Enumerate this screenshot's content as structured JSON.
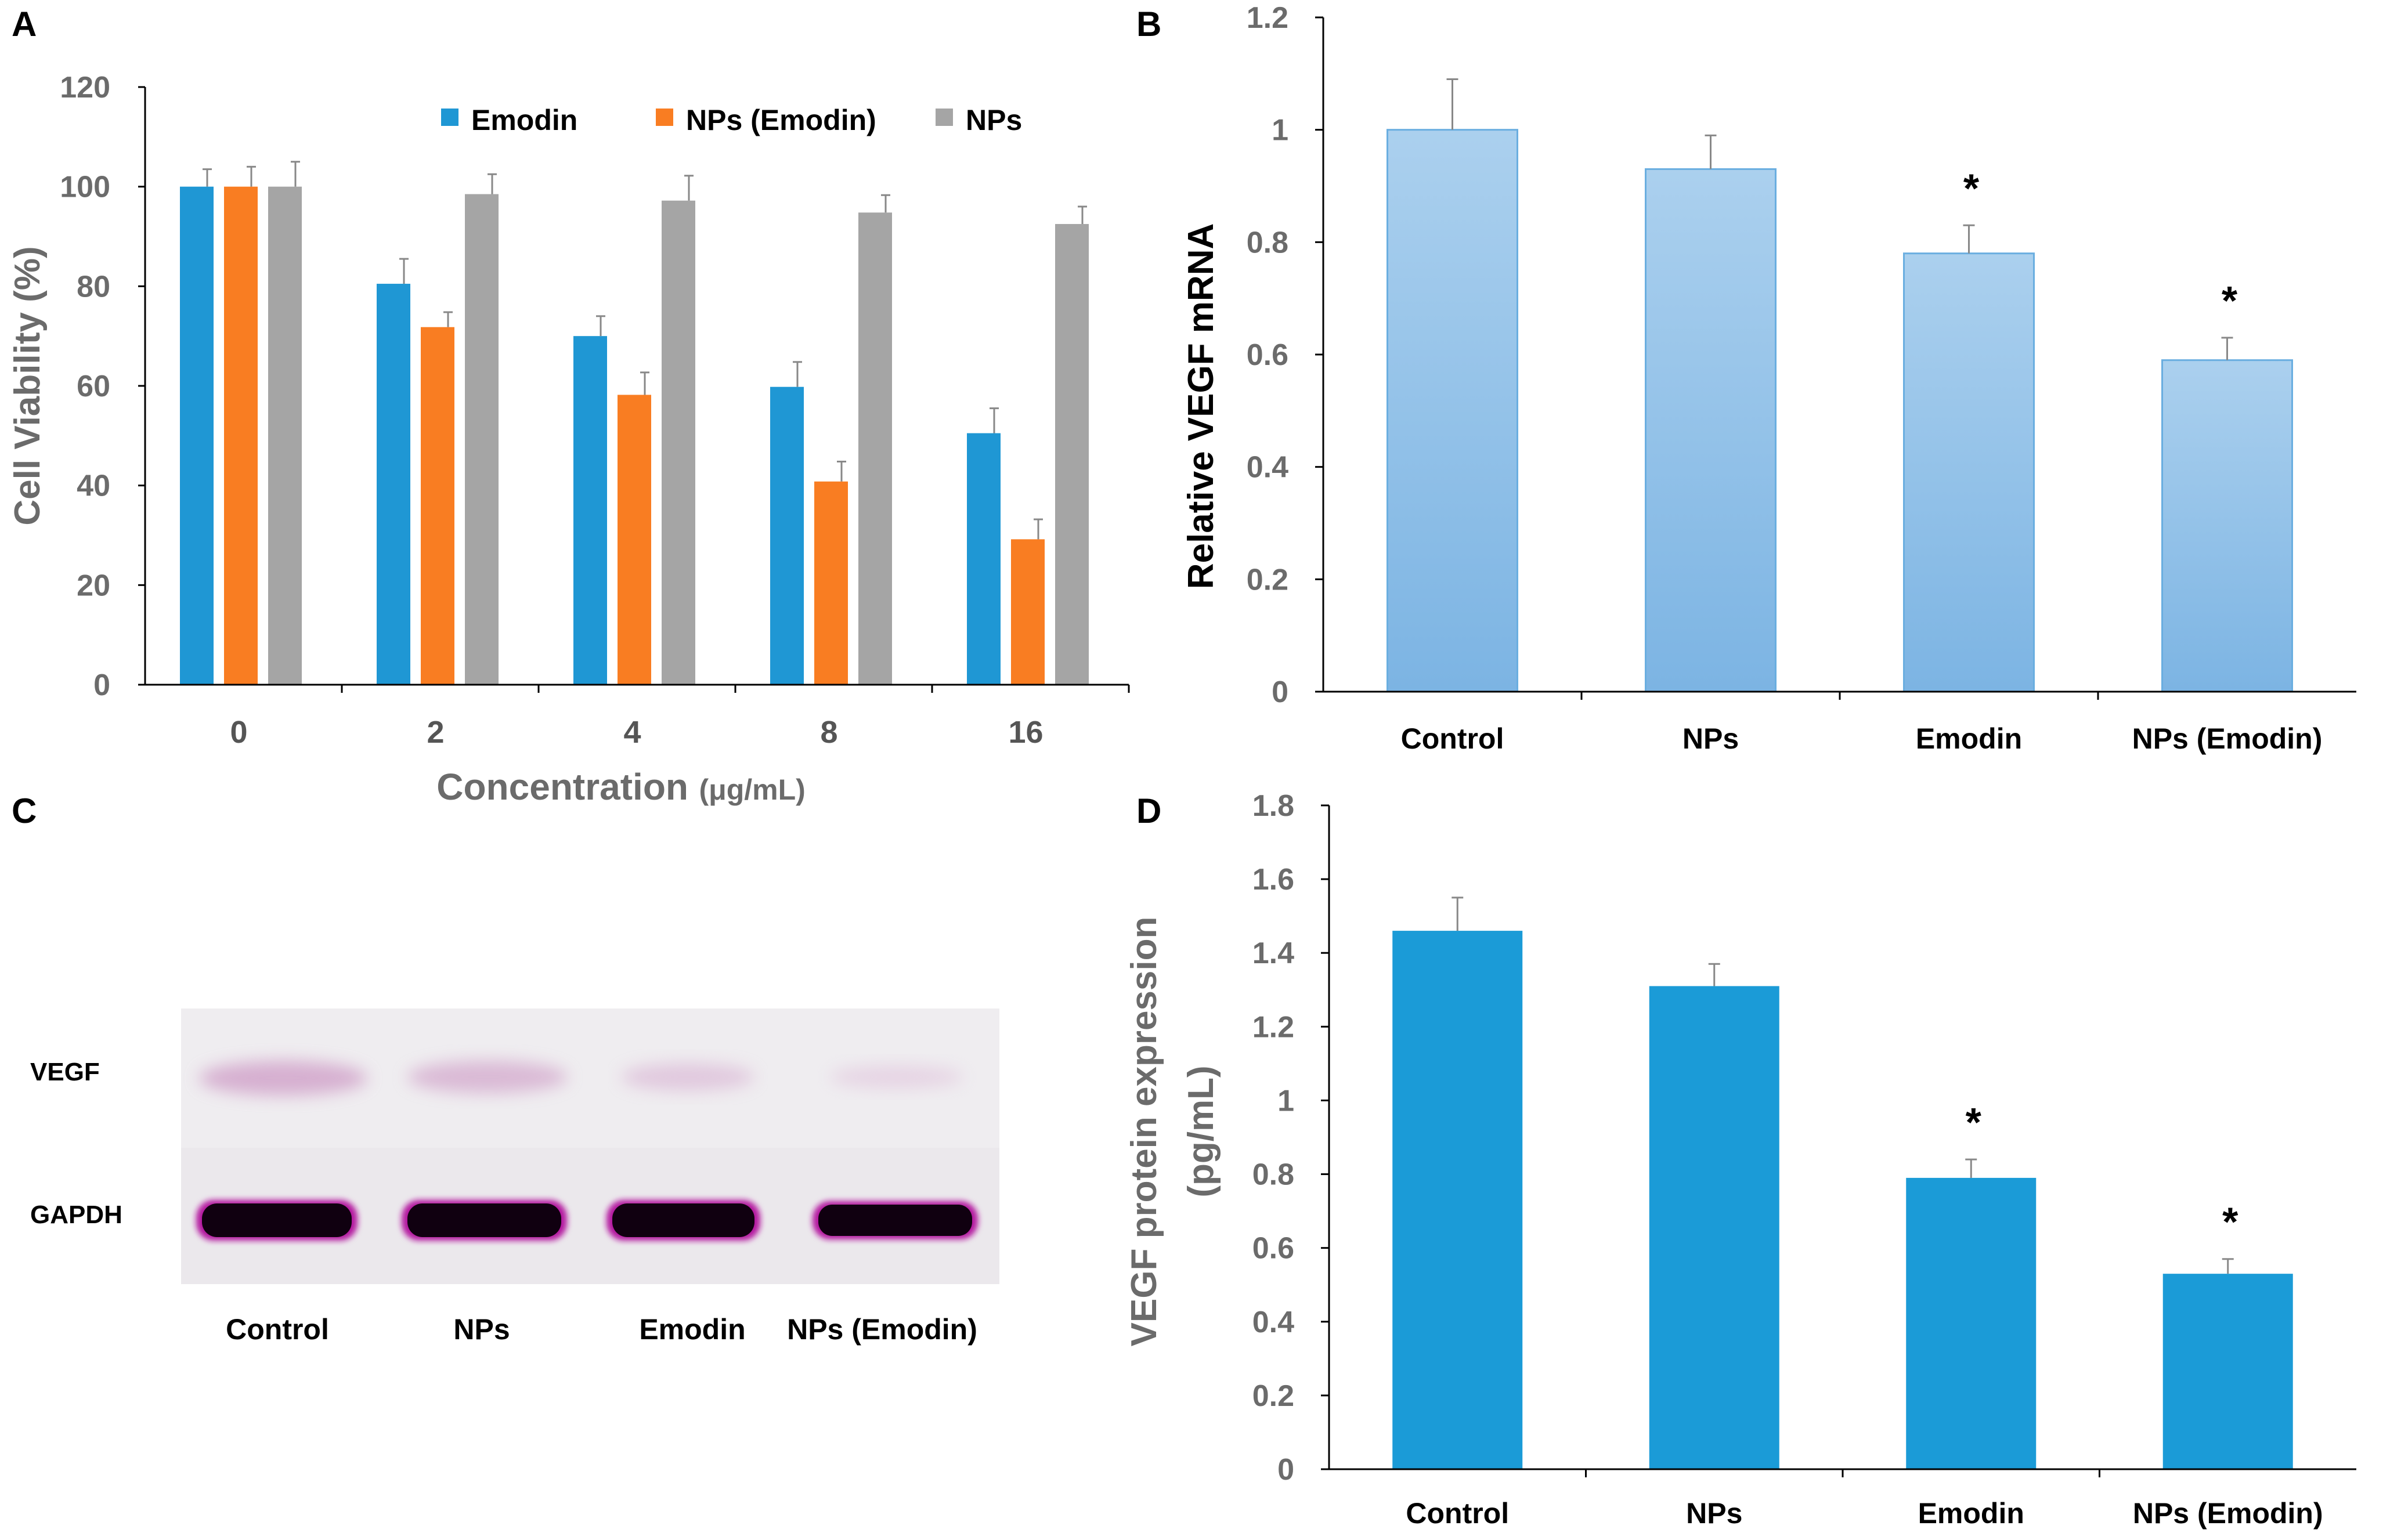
{
  "panels": {
    "a": "A",
    "b": "B",
    "c": "C",
    "d": "D"
  },
  "colors": {
    "emodin": "#1f97d4",
    "nps_emodin": "#f97d22",
    "nps": "#a5a5a5",
    "light_blue_top": "#a9cfee",
    "light_blue_bottom": "#7fb6e4",
    "d_bar": "#1b9bd7"
  },
  "chart_data": [
    {
      "id": "A",
      "type": "bar",
      "title": "",
      "xlabel": "Concentration",
      "xlabel_unit": "(μg/mL)",
      "ylabel": "Cell Viability (%)",
      "ylim": [
        0,
        120
      ],
      "yticks": [
        "0",
        "20",
        "40",
        "60",
        "80",
        "100",
        "120"
      ],
      "categories": [
        "0",
        "2",
        "4",
        "8",
        "16"
      ],
      "series": [
        {
          "name": "Emodin",
          "values": [
            100,
            80.5,
            70,
            59.8,
            50.5
          ],
          "errors": [
            3.5,
            5,
            4,
            5,
            5
          ]
        },
        {
          "name": "NPs (Emodin)",
          "values": [
            100,
            71.8,
            58.2,
            40.8,
            29.2
          ],
          "errors": [
            4,
            3,
            4.5,
            4,
            4
          ]
        },
        {
          "name": "NPs",
          "values": [
            100,
            98.5,
            97.2,
            94.8,
            92.5
          ],
          "errors": [
            5,
            4,
            5,
            3.5,
            3.5
          ]
        }
      ],
      "legend": "top"
    },
    {
      "id": "B",
      "type": "bar",
      "title": "",
      "xlabel": "",
      "ylabel": "Relative VEGF mRNA",
      "ylim": [
        0,
        1.2
      ],
      "yticks": [
        "0",
        "0.2",
        "0.4",
        "0.6",
        "0.8",
        "1",
        "1.2"
      ],
      "categories": [
        "Control",
        "NPs",
        "Emodin",
        "NPs (Emodin)"
      ],
      "values": [
        1.0,
        0.93,
        0.78,
        0.59
      ],
      "errors": [
        0.09,
        0.06,
        0.05,
        0.04
      ],
      "significance": [
        "",
        "",
        "*",
        "*"
      ]
    },
    {
      "id": "D",
      "type": "bar",
      "title": "",
      "xlabel": "",
      "ylabel": "VEGF protein expression",
      "ylabel_unit": "(pg/mL)",
      "ylim": [
        0,
        1.8
      ],
      "yticks": [
        "0",
        "0.2",
        "0.4",
        "0.6",
        "0.8",
        "1",
        "1.2",
        "1.4",
        "1.6",
        "1.8"
      ],
      "categories": [
        "Control",
        "NPs",
        "Emodin",
        "NPs (Emodin)"
      ],
      "values": [
        1.46,
        1.31,
        0.79,
        0.53
      ],
      "errors": [
        0.09,
        0.06,
        0.05,
        0.04
      ],
      "significance": [
        "",
        "",
        "*",
        "*"
      ]
    }
  ],
  "blot": {
    "bands": [
      "VEGF",
      "GAPDH"
    ],
    "lanes": [
      "Control",
      "NPs",
      "Emodin",
      "NPs (Emodin)"
    ]
  }
}
